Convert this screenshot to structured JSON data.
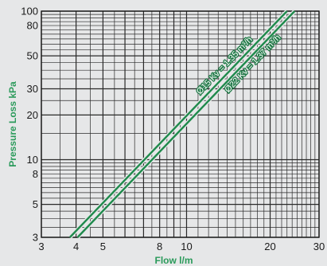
{
  "chart_data": {
    "type": "line",
    "title": "",
    "xlabel": "Flow l/m",
    "ylabel": "Pressure Loss kPa",
    "xscale": "log",
    "yscale": "log",
    "xlim": [
      3,
      30
    ],
    "ylim": [
      3,
      100
    ],
    "grid": true,
    "x_ticks": [
      {
        "value": 3,
        "label": "3"
      },
      {
        "value": 4,
        "label": "4"
      },
      {
        "value": 5,
        "label": "5"
      },
      {
        "value": 8,
        "label": "8"
      },
      {
        "value": 10,
        "label": "10"
      },
      {
        "value": 20,
        "label": "20"
      },
      {
        "value": 30,
        "label": "30"
      }
    ],
    "y_ticks": [
      {
        "value": 3,
        "label": "3"
      },
      {
        "value": 5,
        "label": "5"
      },
      {
        "value": 8,
        "label": "8"
      },
      {
        "value": 10,
        "label": "10"
      },
      {
        "value": 20,
        "label": "20"
      },
      {
        "value": 30,
        "label": "30"
      },
      {
        "value": 50,
        "label": "50"
      },
      {
        "value": 80,
        "label": "80"
      },
      {
        "value": 100,
        "label": "100"
      }
    ],
    "series": [
      {
        "name": "Ø15 Kv = 1.35 m³/h",
        "x": [
          3.8,
          23
        ],
        "y": [
          3,
          100
        ],
        "color": "#1f8a4c"
      },
      {
        "name": "Ø22 Kv = 1.37 m³/h",
        "x": [
          4.05,
          24.5
        ],
        "y": [
          3,
          100
        ],
        "color": "#1f8a4c"
      }
    ],
    "colors": {
      "background": "#e6e7e8",
      "grid": "#2a2a2a",
      "line": "#1f8a4c",
      "axis_title": "#2a9a5a"
    }
  }
}
